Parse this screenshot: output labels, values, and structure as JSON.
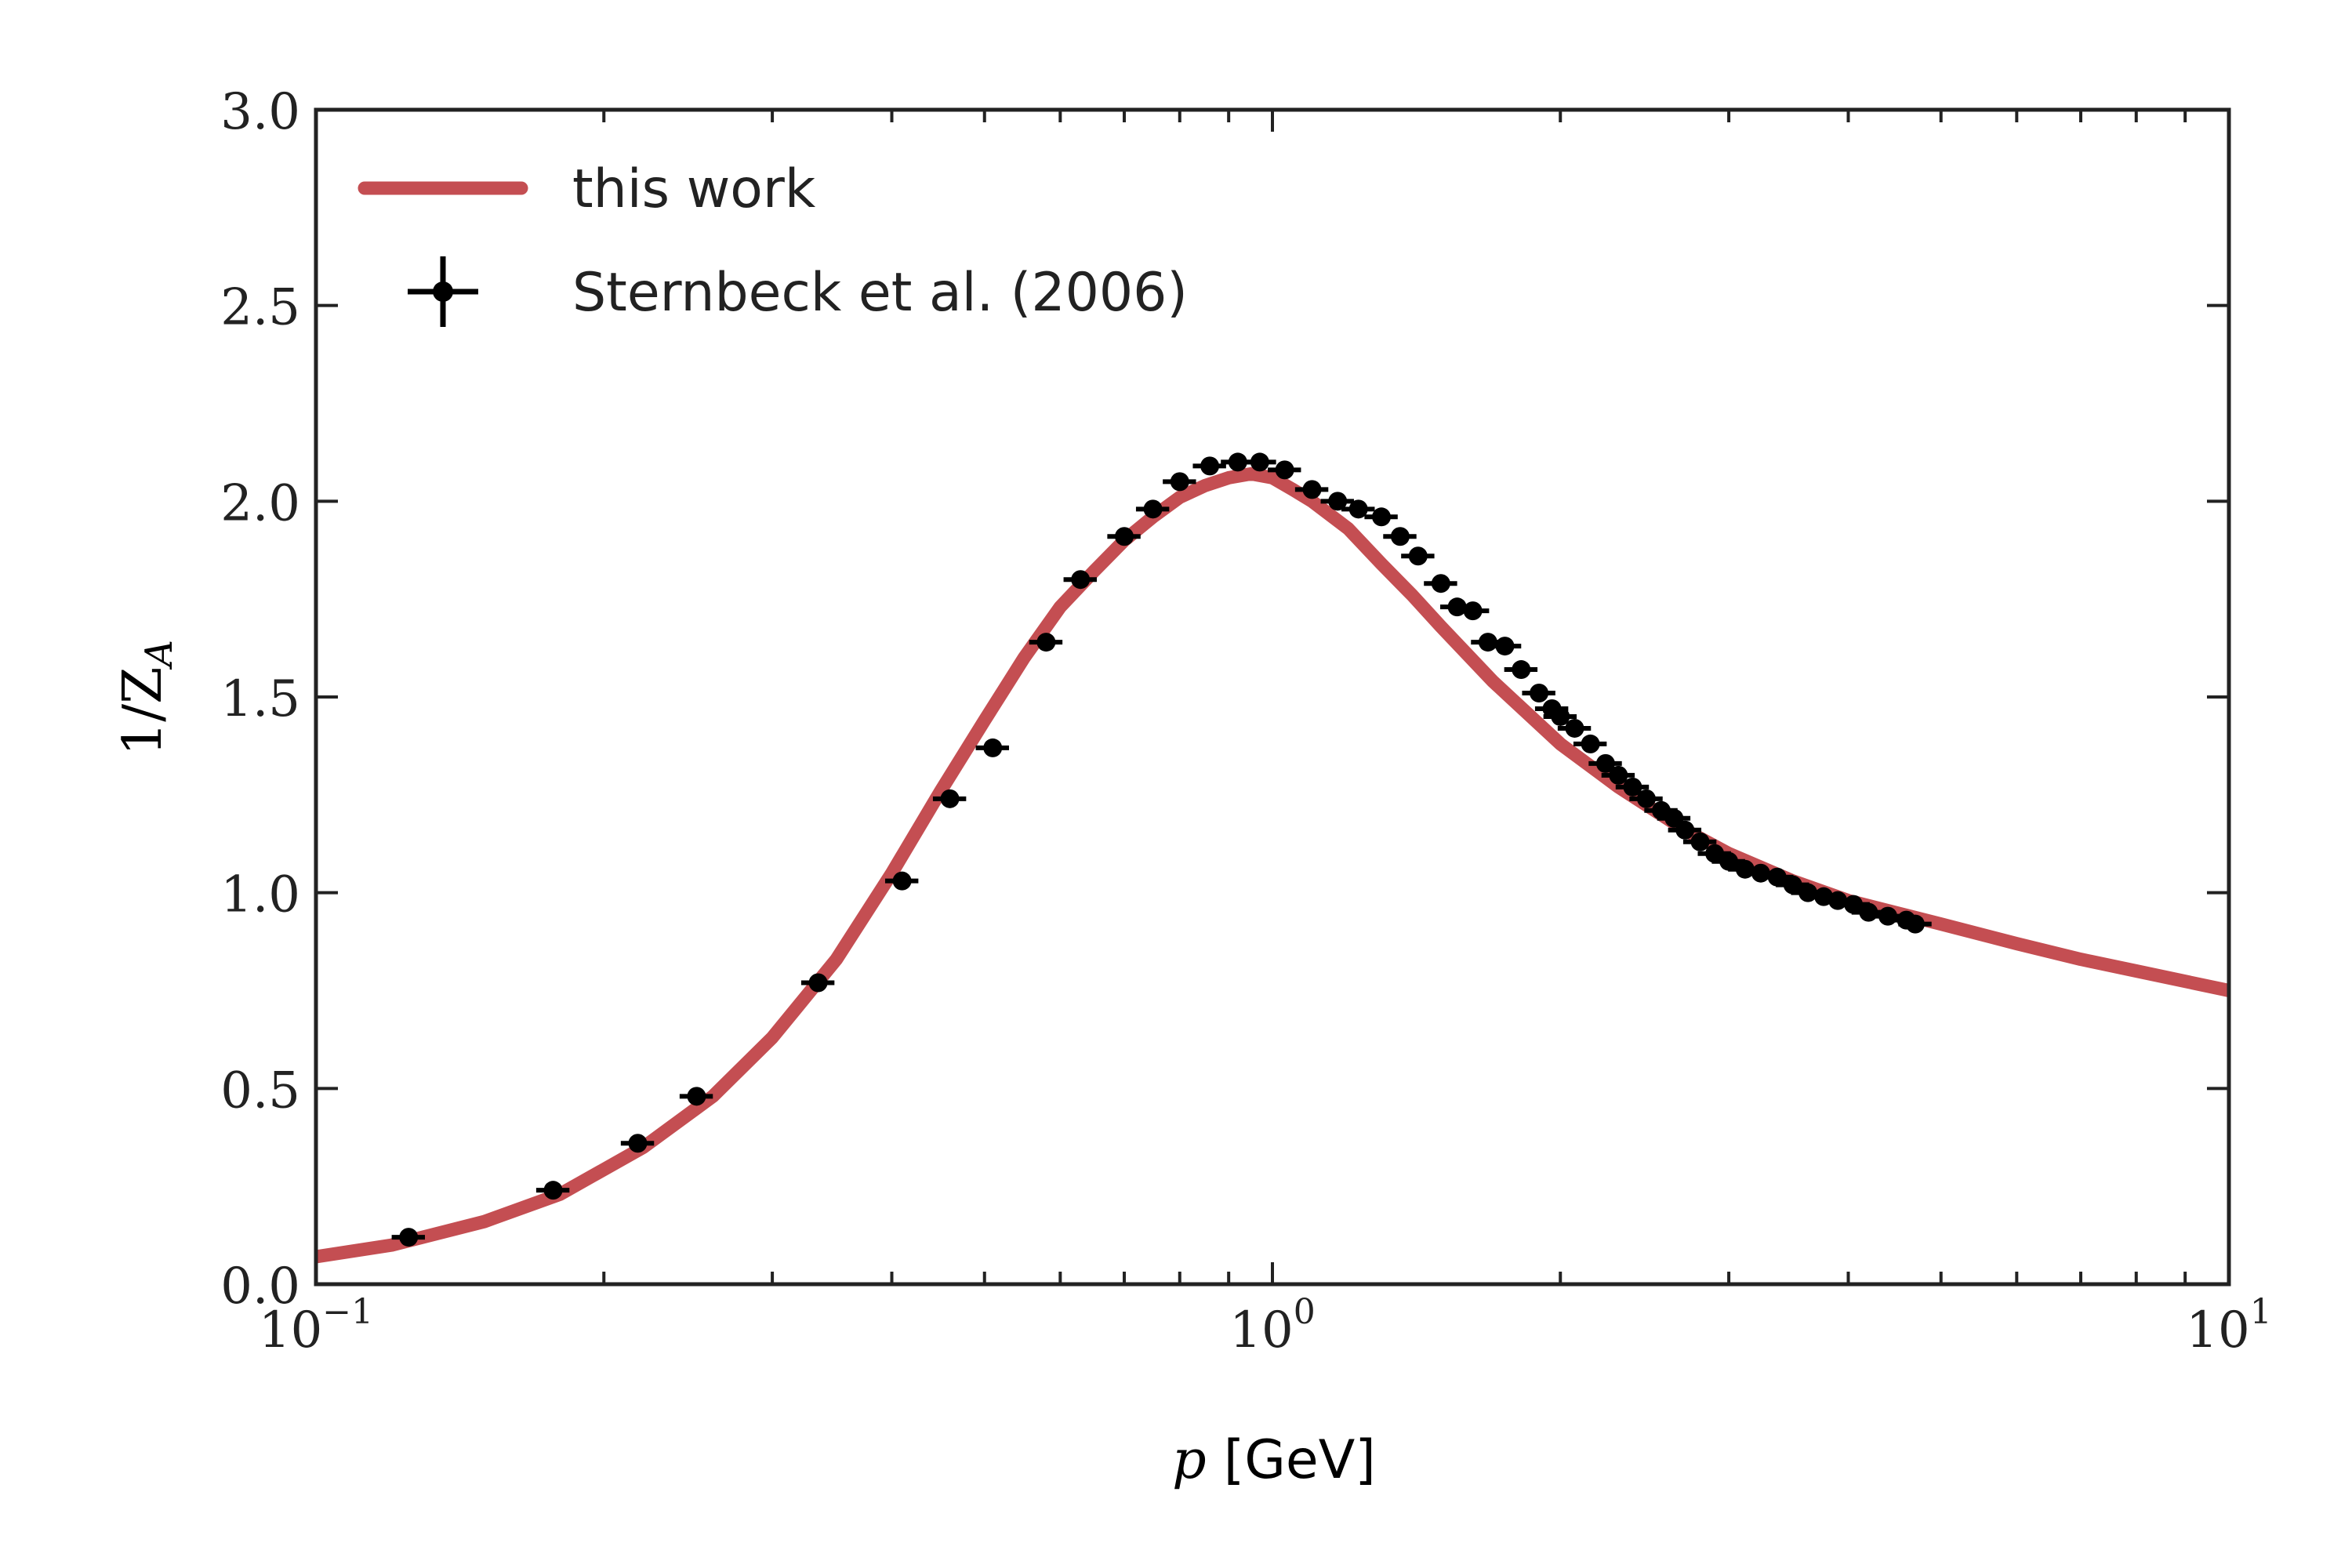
{
  "chart_data": {
    "type": "scatter",
    "title": "",
    "xlabel": {
      "var": "p",
      "unit": "[GeV]"
    },
    "ylabel": {
      "main": "1/Z",
      "sub": "A"
    },
    "xscale": "log",
    "xlim": [
      0.1,
      10
    ],
    "ylim": [
      0.0,
      3.0
    ],
    "x_ticks": [
      {
        "base": "10",
        "exp": "−1",
        "value": 0.1
      },
      {
        "base": "10",
        "exp": "0",
        "value": 1
      },
      {
        "base": "10",
        "exp": "1",
        "value": 10
      }
    ],
    "y_ticks": [
      "0.0",
      "0.5",
      "1.0",
      "1.5",
      "2.0",
      "2.5",
      "3.0"
    ],
    "grid": false,
    "legend_position": "top-left",
    "series": [
      {
        "name": "this work",
        "kind": "line",
        "color": "#c44e52",
        "x": [
          0.1,
          0.12,
          0.15,
          0.18,
          0.22,
          0.26,
          0.3,
          0.35,
          0.4,
          0.45,
          0.5,
          0.55,
          0.6,
          0.65,
          0.7,
          0.75,
          0.8,
          0.85,
          0.9,
          0.95,
          1.0,
          1.05,
          1.1,
          1.2,
          1.3,
          1.4,
          1.5,
          1.7,
          2.0,
          2.3,
          2.7,
          3.0,
          3.5,
          4.0,
          5.0,
          6.0,
          7.0,
          8.0,
          10.0
        ],
        "y": [
          0.07,
          0.1,
          0.16,
          0.23,
          0.35,
          0.48,
          0.63,
          0.83,
          1.05,
          1.26,
          1.44,
          1.6,
          1.73,
          1.82,
          1.9,
          1.96,
          2.01,
          2.04,
          2.06,
          2.07,
          2.06,
          2.03,
          2.0,
          1.93,
          1.84,
          1.76,
          1.68,
          1.54,
          1.38,
          1.27,
          1.16,
          1.1,
          1.03,
          0.98,
          0.92,
          0.87,
          0.83,
          0.8,
          0.75
        ]
      },
      {
        "name": "Sternbeck et al. (2006)",
        "kind": "errorbar",
        "color": "#000000",
        "x": [
          0.125,
          0.177,
          0.217,
          0.25,
          0.335,
          0.41,
          0.46,
          0.51,
          0.58,
          0.63,
          0.7,
          0.75,
          0.8,
          0.86,
          0.92,
          0.97,
          1.03,
          1.1,
          1.17,
          1.23,
          1.3,
          1.36,
          1.42,
          1.5,
          1.56,
          1.62,
          1.68,
          1.75,
          1.82,
          1.9,
          1.96,
          2.0,
          2.07,
          2.15,
          2.23,
          2.3,
          2.38,
          2.46,
          2.55,
          2.63,
          2.7,
          2.8,
          2.9,
          3.0,
          3.12,
          3.24,
          3.37,
          3.5,
          3.63,
          3.77,
          3.9,
          4.05,
          4.2,
          4.4,
          4.6,
          4.7
        ],
        "y": [
          0.12,
          0.24,
          0.36,
          0.48,
          0.77,
          1.03,
          1.24,
          1.37,
          1.64,
          1.8,
          1.91,
          1.98,
          2.05,
          2.09,
          2.1,
          2.1,
          2.08,
          2.03,
          2.0,
          1.98,
          1.96,
          1.91,
          1.86,
          1.79,
          1.73,
          1.72,
          1.64,
          1.63,
          1.57,
          1.51,
          1.47,
          1.45,
          1.42,
          1.38,
          1.33,
          1.3,
          1.27,
          1.24,
          1.21,
          1.19,
          1.16,
          1.13,
          1.1,
          1.08,
          1.06,
          1.05,
          1.04,
          1.02,
          1.0,
          0.99,
          0.98,
          0.97,
          0.95,
          0.94,
          0.93,
          0.92
        ],
        "xerr_rel": 0.04
      }
    ]
  }
}
